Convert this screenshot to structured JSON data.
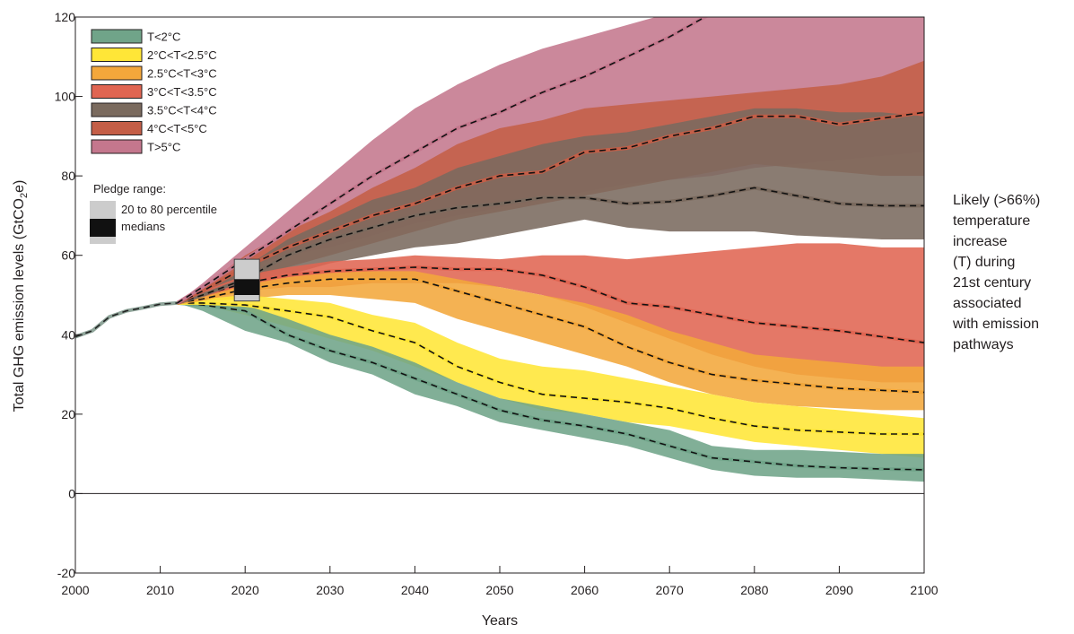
{
  "chart_data": {
    "type": "area",
    "xlabel": "Years",
    "ylabel_main": "Total GHG emission levels (GtCO",
    "ylabel_sub": "2",
    "ylabel_tail": "e)",
    "xlim": [
      2000,
      2100
    ],
    "ylim": [
      -20,
      120
    ],
    "x_ticks": [
      2000,
      2010,
      2020,
      2030,
      2040,
      2050,
      2060,
      2070,
      2080,
      2090,
      2100
    ],
    "y_ticks": [
      -20,
      0,
      20,
      40,
      60,
      80,
      100,
      120
    ],
    "history": {
      "x": [
        2000,
        2002,
        2004,
        2006,
        2008,
        2010,
        2012
      ],
      "y": [
        39.5,
        41,
        44.5,
        46,
        46.8,
        47.7,
        48
      ]
    },
    "series": [
      {
        "name": "T<2°C",
        "color": "#70a489",
        "x": [
          2012,
          2015,
          2020,
          2025,
          2030,
          2035,
          2040,
          2045,
          2050,
          2055,
          2060,
          2065,
          2070,
          2075,
          2080,
          2085,
          2090,
          2095,
          2100
        ],
        "median": [
          48,
          47.5,
          46,
          40,
          36,
          33,
          29,
          25,
          21,
          18.5,
          17,
          15,
          12,
          9,
          8,
          7,
          6.5,
          6.2,
          6
        ],
        "low": [
          48,
          46,
          41,
          38,
          33,
          30,
          25,
          22,
          18,
          16,
          14,
          12,
          9,
          6,
          4.5,
          4,
          4,
          3.5,
          3
        ],
        "high": [
          48,
          48,
          47.5,
          44,
          40,
          37,
          33,
          28,
          24,
          22,
          20,
          18,
          16,
          12,
          11,
          11,
          10.5,
          10,
          10
        ]
      },
      {
        "name": "2°C<T<2.5°C",
        "color": "#ffe637",
        "x": [
          2012,
          2015,
          2020,
          2025,
          2030,
          2035,
          2040,
          2045,
          2050,
          2055,
          2060,
          2065,
          2070,
          2075,
          2080,
          2085,
          2090,
          2095,
          2100
        ],
        "median": [
          48,
          48,
          47.5,
          46,
          44.5,
          41,
          38,
          32,
          28,
          25,
          24,
          23,
          21.5,
          19,
          17,
          16,
          15.5,
          15,
          15
        ],
        "low": [
          48,
          47.5,
          45,
          42,
          39,
          36,
          32,
          28,
          24,
          21,
          20,
          18,
          17,
          15,
          13,
          12,
          11,
          10,
          9
        ],
        "high": [
          48,
          49,
          50,
          49,
          48,
          45,
          43,
          38,
          34,
          32,
          31,
          29,
          27,
          25,
          23,
          22,
          21,
          20,
          19
        ]
      },
      {
        "name": "2.5°C<T<3°C",
        "color": "#f3a73b",
        "x": [
          2012,
          2015,
          2020,
          2025,
          2030,
          2035,
          2040,
          2045,
          2050,
          2055,
          2060,
          2065,
          2070,
          2075,
          2080,
          2085,
          2090,
          2095,
          2100
        ],
        "median": [
          48,
          49,
          51.5,
          53,
          54,
          54,
          54,
          51,
          48,
          45,
          42,
          37,
          33,
          30,
          28.5,
          27.5,
          26.5,
          26,
          25.5
        ],
        "low": [
          48,
          48.5,
          49,
          50,
          50,
          49,
          48,
          44,
          41,
          38,
          35,
          32,
          28,
          25,
          23,
          22,
          21.5,
          21,
          21
        ],
        "high": [
          48,
          49.5,
          53,
          54.5,
          56,
          56,
          56,
          54,
          52,
          50,
          48,
          45,
          41,
          38,
          35,
          34,
          33,
          32,
          32
        ]
      },
      {
        "name": "3°C<T<3.5°C",
        "color": "#e06552",
        "x": [
          2012,
          2015,
          2020,
          2025,
          2030,
          2035,
          2040,
          2045,
          2050,
          2055,
          2060,
          2065,
          2070,
          2075,
          2080,
          2085,
          2090,
          2095,
          2100
        ],
        "median": [
          48,
          50,
          53,
          55,
          56,
          56.5,
          57,
          56.5,
          56.5,
          55,
          52,
          48,
          47,
          45,
          43,
          42,
          41,
          39.5,
          38
        ],
        "low": [
          48,
          49,
          51,
          52,
          52,
          53,
          53,
          53,
          52,
          50,
          47,
          43,
          39,
          35,
          32,
          30,
          29,
          28,
          28
        ],
        "high": [
          48,
          51,
          55,
          57,
          58.5,
          59,
          60,
          59.5,
          59,
          60,
          60,
          59,
          60,
          61,
          62,
          63,
          63,
          62,
          62
        ]
      },
      {
        "name": "3.5°C<T<4°C",
        "color": "#7a6a5e",
        "x": [
          2012,
          2015,
          2020,
          2025,
          2030,
          2035,
          2040,
          2045,
          2050,
          2055,
          2060,
          2065,
          2070,
          2075,
          2080,
          2085,
          2090,
          2095,
          2100
        ],
        "median": [
          48,
          50,
          54,
          60,
          64,
          67,
          70,
          72,
          73,
          74.5,
          74.5,
          73,
          73.5,
          75,
          77,
          75,
          73,
          72.5,
          72.5
        ],
        "low": [
          48,
          49.5,
          52,
          55,
          58,
          60,
          62,
          63,
          65,
          67,
          69,
          67,
          66,
          66,
          66,
          65,
          64.5,
          64,
          64
        ],
        "high": [
          48,
          51,
          57,
          64,
          69,
          74,
          77,
          82,
          85,
          88,
          90,
          91,
          93,
          95,
          97,
          97,
          96,
          96,
          95
        ]
      },
      {
        "name": "4°C<T<5°C",
        "color": "#c45e47",
        "x": [
          2012,
          2015,
          2020,
          2025,
          2030,
          2035,
          2040,
          2045,
          2050,
          2055,
          2060,
          2065,
          2070,
          2075,
          2080,
          2085,
          2090,
          2095,
          2100
        ],
        "median": [
          48,
          51,
          57,
          62,
          66,
          70,
          73,
          77,
          80,
          81,
          86,
          87,
          90,
          92,
          95,
          95,
          93,
          94.5,
          96
        ],
        "low": [
          48,
          50,
          54,
          57,
          60,
          63,
          66,
          69,
          71,
          73,
          75,
          77,
          79,
          81,
          83,
          82,
          81,
          80,
          80
        ],
        "high": [
          48,
          52,
          60,
          66,
          71,
          77,
          82,
          88,
          92,
          94,
          97,
          98,
          99,
          100,
          101,
          102,
          103,
          105,
          109
        ]
      },
      {
        "name": "T>5°C",
        "color": "#c4778d",
        "x": [
          2012,
          2015,
          2020,
          2025,
          2030,
          2035,
          2040,
          2045,
          2050,
          2055,
          2060,
          2065,
          2070,
          2075,
          2080,
          2085,
          2090,
          2095,
          2100
        ],
        "median": [
          48,
          52,
          59,
          66,
          73,
          80,
          86,
          92,
          96,
          101,
          105,
          110,
          115,
          121,
          125,
          128,
          132,
          136,
          140
        ],
        "low": [
          48,
          51,
          57,
          60,
          62,
          65,
          68,
          70,
          72,
          74,
          76,
          78,
          79,
          80,
          82,
          83,
          84,
          85,
          86
        ],
        "high": [
          48,
          53,
          62,
          71,
          80,
          89,
          97,
          103,
          108,
          112,
          115,
          118,
          121,
          124,
          127,
          130,
          133,
          136,
          140
        ]
      }
    ],
    "pledge": {
      "title": "Pledge range:",
      "percentile_label": "20 to 80 percentile",
      "median_label": "medians",
      "year": 2020,
      "p20": 48.5,
      "p80": 59,
      "median_low": 50,
      "median_high": 54,
      "percentile_color": "#cccccc",
      "median_color": "#111111"
    },
    "annotation_lines": [
      "Likely (>66%)",
      "temperature",
      "increase",
      "(T) during",
      "21st century",
      "associated",
      "with emission",
      "pathways"
    ],
    "legend_position": "top-left",
    "grid": false
  }
}
